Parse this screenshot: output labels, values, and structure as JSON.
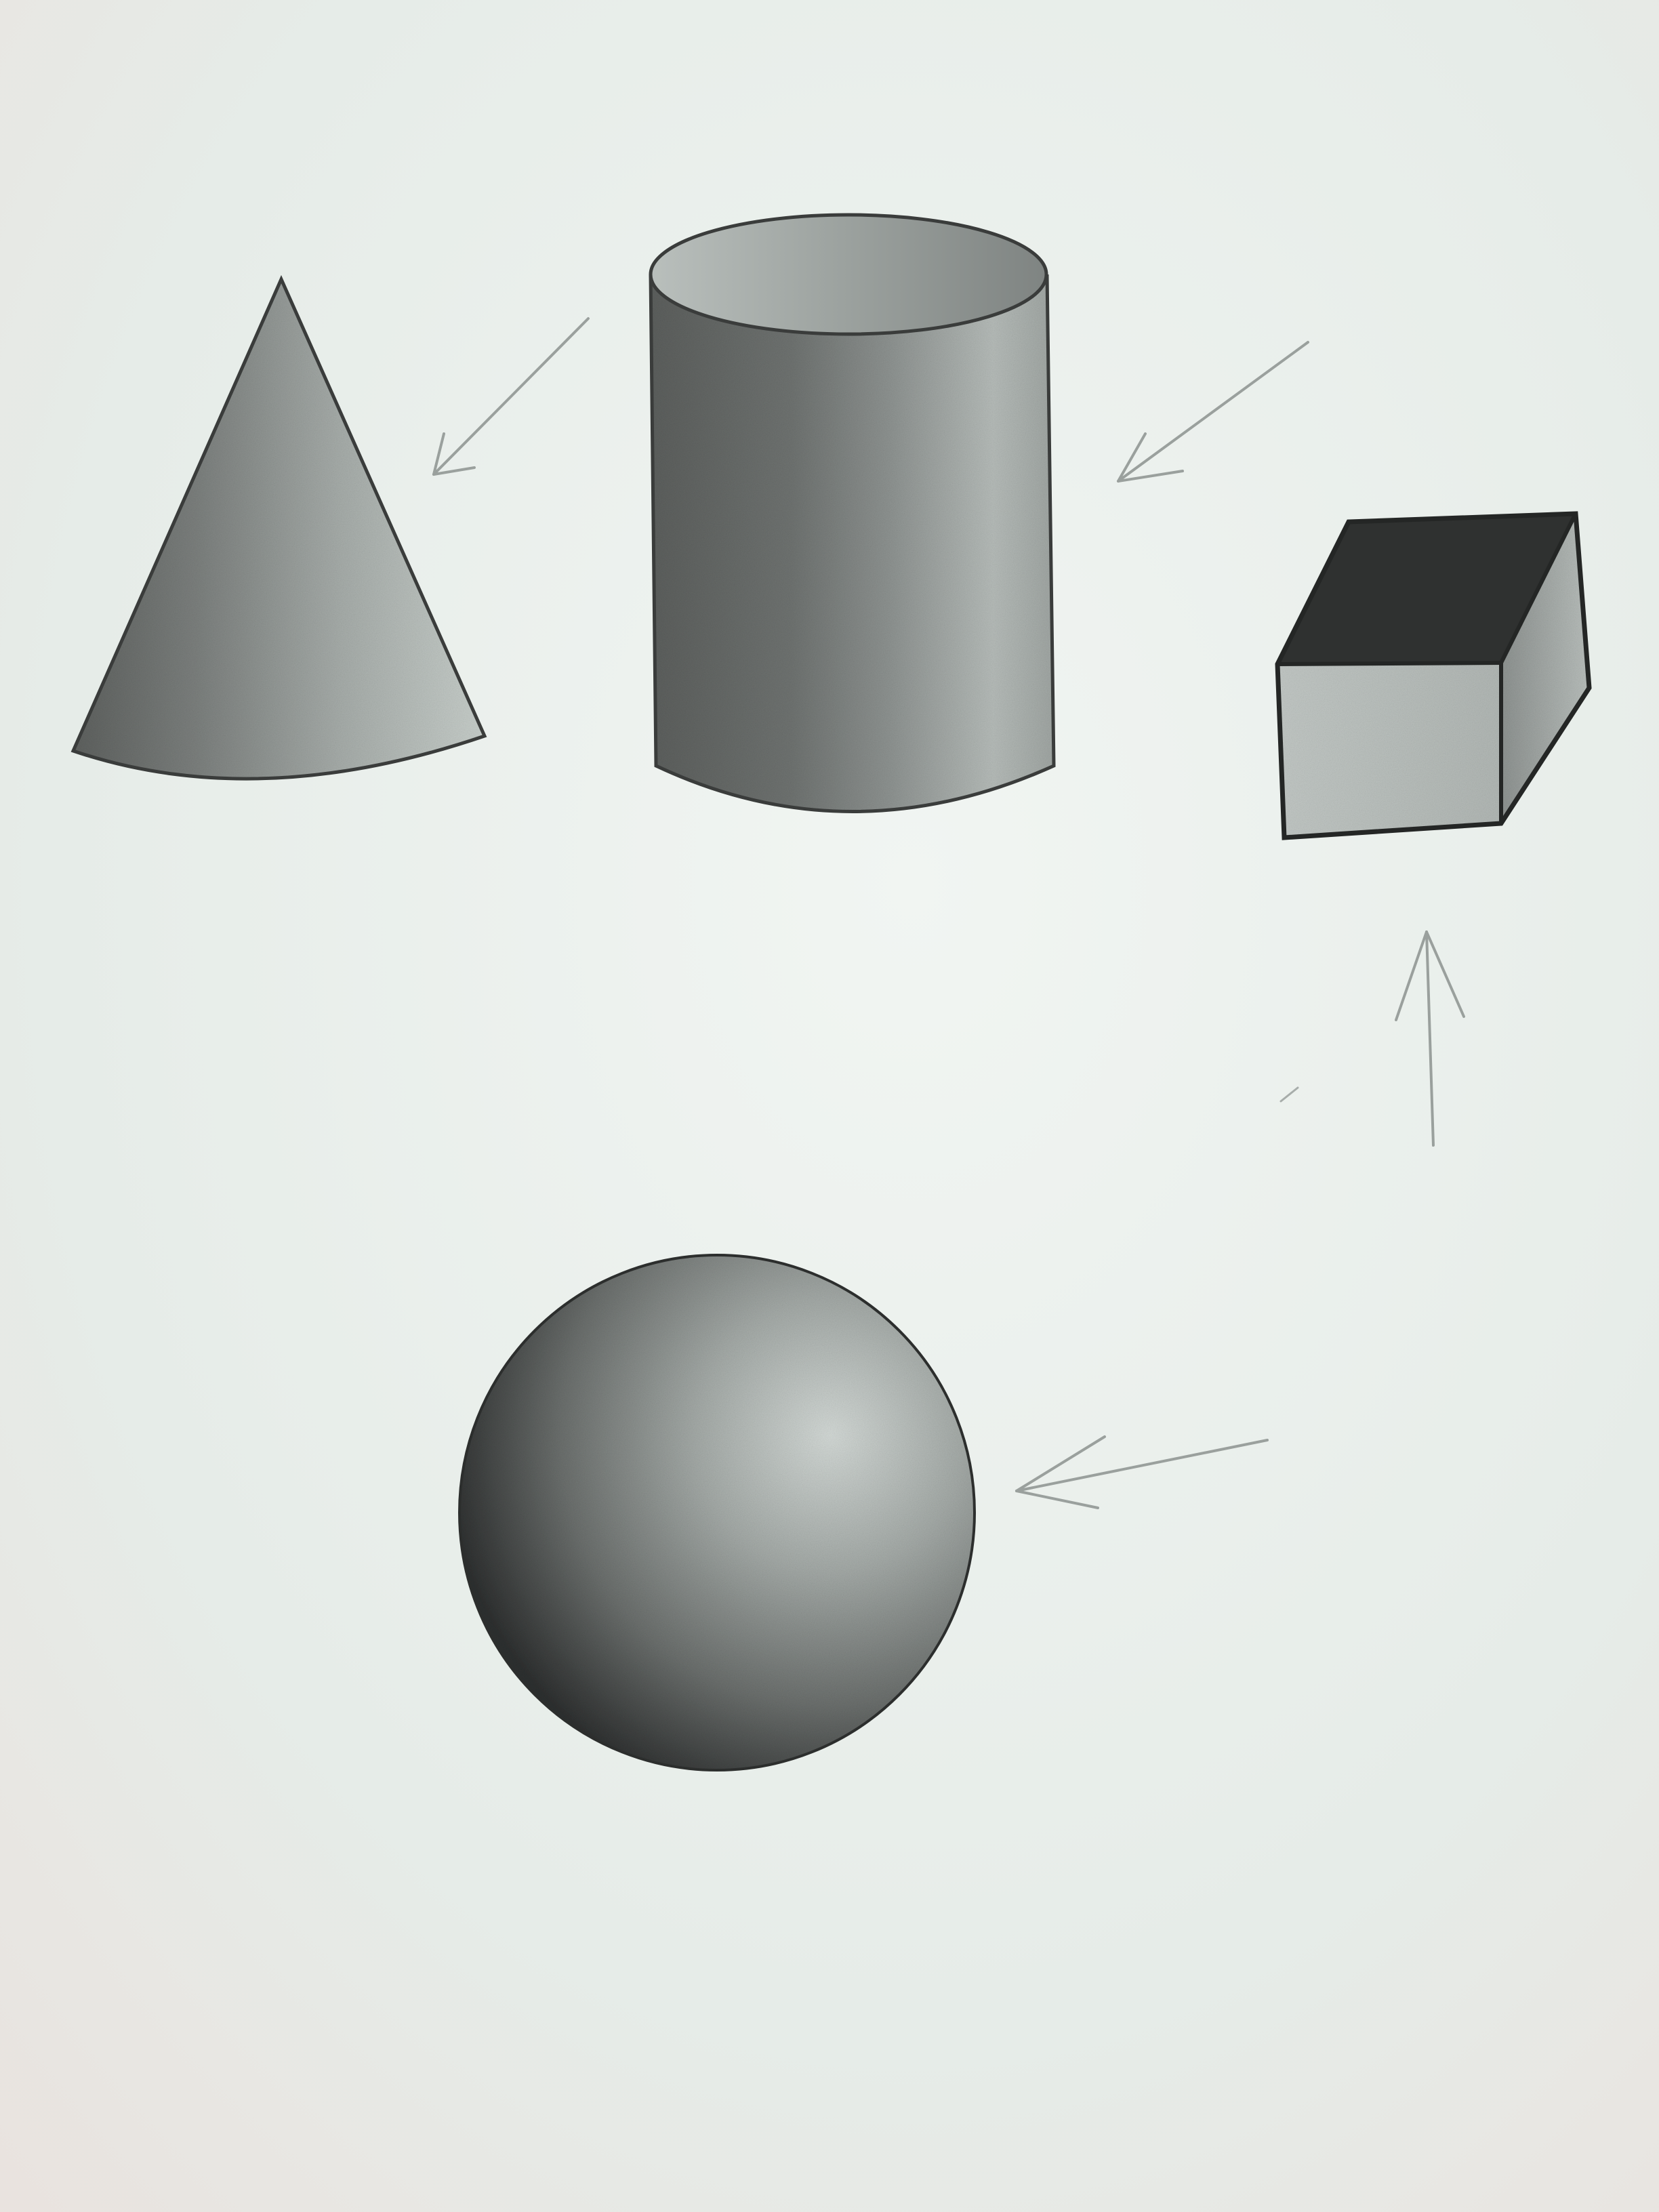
{
  "scene": {
    "paper_color": "#e9efeb",
    "graphite_dark": "#2b2b2b",
    "graphite_mid": "#7d817f",
    "graphite_light": "#c9cfcb",
    "shapes": [
      {
        "kind": "cone",
        "icon": "cone-icon"
      },
      {
        "kind": "cylinder",
        "icon": "cylinder-icon"
      },
      {
        "kind": "cube",
        "icon": "cube-icon"
      },
      {
        "kind": "sphere",
        "icon": "sphere-icon"
      }
    ],
    "light_direction_arrows": 5
  }
}
